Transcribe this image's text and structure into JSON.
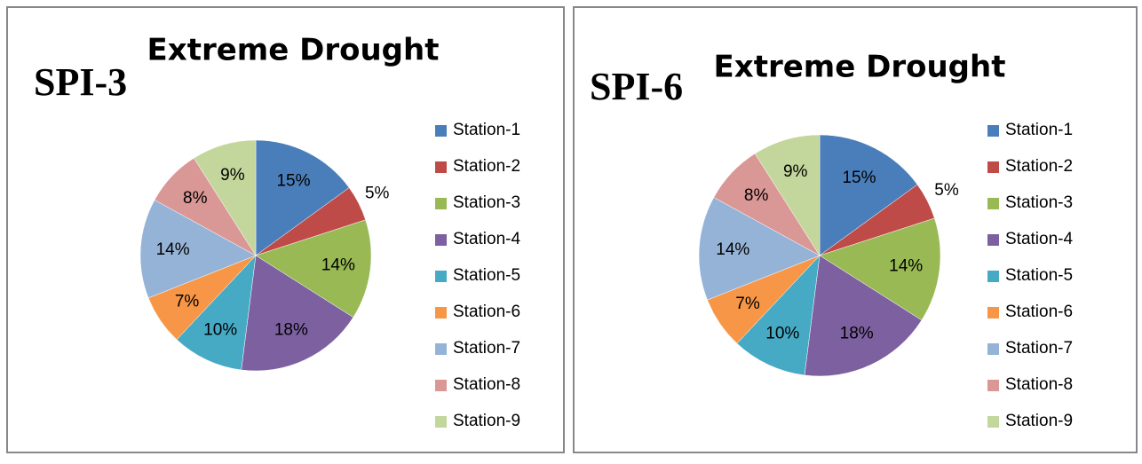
{
  "chart_data": [
    {
      "type": "pie",
      "title": "Extreme Drought",
      "annotation": "SPI-3",
      "categories": [
        "Station-1",
        "Station-2",
        "Station-3",
        "Station-4",
        "Station-5",
        "Station-6",
        "Station-7",
        "Station-8",
        "Station-9"
      ],
      "values": [
        15,
        5,
        14,
        18,
        10,
        7,
        14,
        8,
        9
      ],
      "value_labels": [
        "15%",
        "5%",
        "14%",
        "18%",
        "10%",
        "7%",
        "14%",
        "8%",
        "9%"
      ],
      "colors": [
        "#4a7ebb",
        "#be4b48",
        "#98b954",
        "#7d60a0",
        "#46aac5",
        "#f79646",
        "#95b3d7",
        "#d99795",
        "#c3d69b"
      ],
      "legend": "right"
    },
    {
      "type": "pie",
      "title": "Extreme Drought",
      "annotation": "SPI-6",
      "categories": [
        "Station-1",
        "Station-2",
        "Station-3",
        "Station-4",
        "Station-5",
        "Station-6",
        "Station-7",
        "Station-8",
        "Station-9"
      ],
      "values": [
        15,
        5,
        14,
        18,
        10,
        7,
        14,
        8,
        9
      ],
      "value_labels": [
        "15%",
        "5%",
        "14%",
        "18%",
        "10%",
        "7%",
        "14%",
        "8%",
        "9%"
      ],
      "colors": [
        "#4a7ebb",
        "#be4b48",
        "#98b954",
        "#7d60a0",
        "#46aac5",
        "#f79646",
        "#95b3d7",
        "#d99795",
        "#c3d69b"
      ],
      "legend": "right"
    }
  ]
}
